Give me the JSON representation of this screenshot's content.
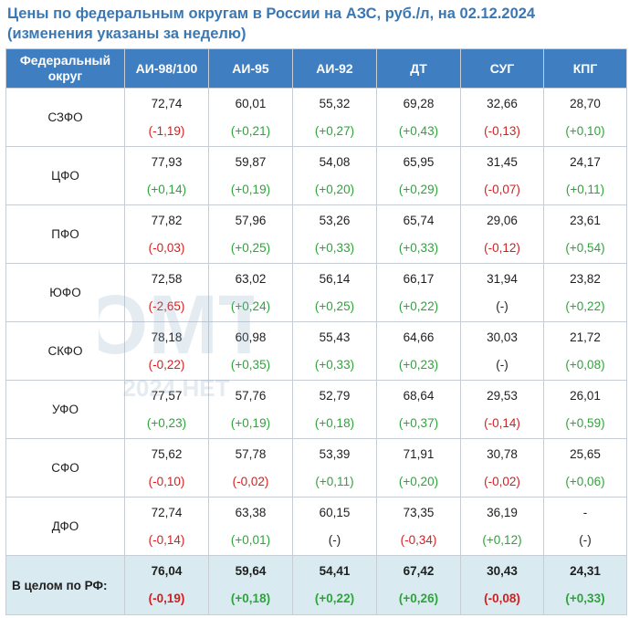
{
  "title": {
    "line1": "Цены по федеральным округам в России на АЗС, руб./л, на 02.12.2024",
    "line2": "(изменения указаны за неделю)"
  },
  "header": {
    "region": "Федеральный округ",
    "cols": [
      "АИ-98/100",
      "АИ-95",
      "АИ-92",
      "ДТ",
      "СУГ",
      "КПГ"
    ]
  },
  "rows": [
    {
      "region": "СЗФО",
      "cells": [
        {
          "v": "72,74",
          "c": "(-1,19)",
          "t": "down"
        },
        {
          "v": "60,01",
          "c": "(+0,21)",
          "t": "up"
        },
        {
          "v": "55,32",
          "c": "(+0,27)",
          "t": "up"
        },
        {
          "v": "69,28",
          "c": "(+0,43)",
          "t": "up"
        },
        {
          "v": "32,66",
          "c": "(-0,13)",
          "t": "down"
        },
        {
          "v": "28,70",
          "c": "(+0,10)",
          "t": "up"
        }
      ]
    },
    {
      "region": "ЦФО",
      "cells": [
        {
          "v": "77,93",
          "c": "(+0,14)",
          "t": "up"
        },
        {
          "v": "59,87",
          "c": "(+0,19)",
          "t": "up"
        },
        {
          "v": "54,08",
          "c": "(+0,20)",
          "t": "up"
        },
        {
          "v": "65,95",
          "c": "(+0,29)",
          "t": "up"
        },
        {
          "v": "31,45",
          "c": "(-0,07)",
          "t": "down"
        },
        {
          "v": "24,17",
          "c": "(+0,11)",
          "t": "up"
        }
      ]
    },
    {
      "region": "ПФО",
      "cells": [
        {
          "v": "77,82",
          "c": "(-0,03)",
          "t": "down"
        },
        {
          "v": "57,96",
          "c": "(+0,25)",
          "t": "up"
        },
        {
          "v": "53,26",
          "c": "(+0,33)",
          "t": "up"
        },
        {
          "v": "65,74",
          "c": "(+0,33)",
          "t": "up"
        },
        {
          "v": "29,06",
          "c": "(-0,12)",
          "t": "down"
        },
        {
          "v": "23,61",
          "c": "(+0,54)",
          "t": "up"
        }
      ]
    },
    {
      "region": "ЮФО",
      "cells": [
        {
          "v": "72,58",
          "c": "(-2,65)",
          "t": "down"
        },
        {
          "v": "63,02",
          "c": "(+0,24)",
          "t": "up"
        },
        {
          "v": "56,14",
          "c": "(+0,25)",
          "t": "up"
        },
        {
          "v": "66,17",
          "c": "(+0,22)",
          "t": "up"
        },
        {
          "v": "31,94",
          "c": "(-)",
          "t": "neutral"
        },
        {
          "v": "23,82",
          "c": "(+0,22)",
          "t": "up"
        }
      ]
    },
    {
      "region": "СКФО",
      "cells": [
        {
          "v": "78,18",
          "c": "(-0,22)",
          "t": "down"
        },
        {
          "v": "60,98",
          "c": "(+0,35)",
          "t": "up"
        },
        {
          "v": "55,43",
          "c": "(+0,33)",
          "t": "up"
        },
        {
          "v": "64,66",
          "c": "(+0,23)",
          "t": "up"
        },
        {
          "v": "30,03",
          "c": "(-)",
          "t": "neutral"
        },
        {
          "v": "21,72",
          "c": "(+0,08)",
          "t": "up"
        }
      ]
    },
    {
      "region": "УФО",
      "cells": [
        {
          "v": "77,57",
          "c": "(+0,23)",
          "t": "up"
        },
        {
          "v": "57,76",
          "c": "(+0,19)",
          "t": "up"
        },
        {
          "v": "52,79",
          "c": "(+0,18)",
          "t": "up"
        },
        {
          "v": "68,64",
          "c": "(+0,37)",
          "t": "up"
        },
        {
          "v": "29,53",
          "c": "(-0,14)",
          "t": "down"
        },
        {
          "v": "26,01",
          "c": "(+0,59)",
          "t": "up"
        }
      ]
    },
    {
      "region": "СФО",
      "cells": [
        {
          "v": "75,62",
          "c": "(-0,10)",
          "t": "down"
        },
        {
          "v": "57,78",
          "c": "(-0,02)",
          "t": "down"
        },
        {
          "v": "53,39",
          "c": "(+0,11)",
          "t": "up"
        },
        {
          "v": "71,91",
          "c": "(+0,20)",
          "t": "up"
        },
        {
          "v": "30,78",
          "c": "(-0,02)",
          "t": "down"
        },
        {
          "v": "25,65",
          "c": "(+0,06)",
          "t": "up"
        }
      ]
    },
    {
      "region": "ДФО",
      "cells": [
        {
          "v": "72,74",
          "c": "(-0,14)",
          "t": "down"
        },
        {
          "v": "63,38",
          "c": "(+0,01)",
          "t": "up"
        },
        {
          "v": "60,15",
          "c": "(-)",
          "t": "neutral"
        },
        {
          "v": "73,35",
          "c": "(-0,34)",
          "t": "down"
        },
        {
          "v": "36,19",
          "c": "(+0,12)",
          "t": "up"
        },
        {
          "v": "-",
          "c": "(-)",
          "t": "neutral"
        }
      ]
    }
  ],
  "total": {
    "region": "В целом по РФ:",
    "cells": [
      {
        "v": "76,04",
        "c": "(-0,19)",
        "t": "down"
      },
      {
        "v": "59,64",
        "c": "(+0,18)",
        "t": "up"
      },
      {
        "v": "54,41",
        "c": "(+0,22)",
        "t": "up"
      },
      {
        "v": "67,42",
        "c": "(+0,26)",
        "t": "up"
      },
      {
        "v": "30,43",
        "c": "(-0,08)",
        "t": "down"
      },
      {
        "v": "24,31",
        "c": "(+0,33)",
        "t": "up"
      }
    ]
  },
  "watermark": {
    "logo": "ОМТ",
    "sub": "2024 НЕТ"
  },
  "colors": {
    "header_bg": "#3f7fc1",
    "title": "#3a78b5",
    "up": "#2fa33b",
    "down": "#d21f1f",
    "total_bg": "#d9ebf0"
  }
}
